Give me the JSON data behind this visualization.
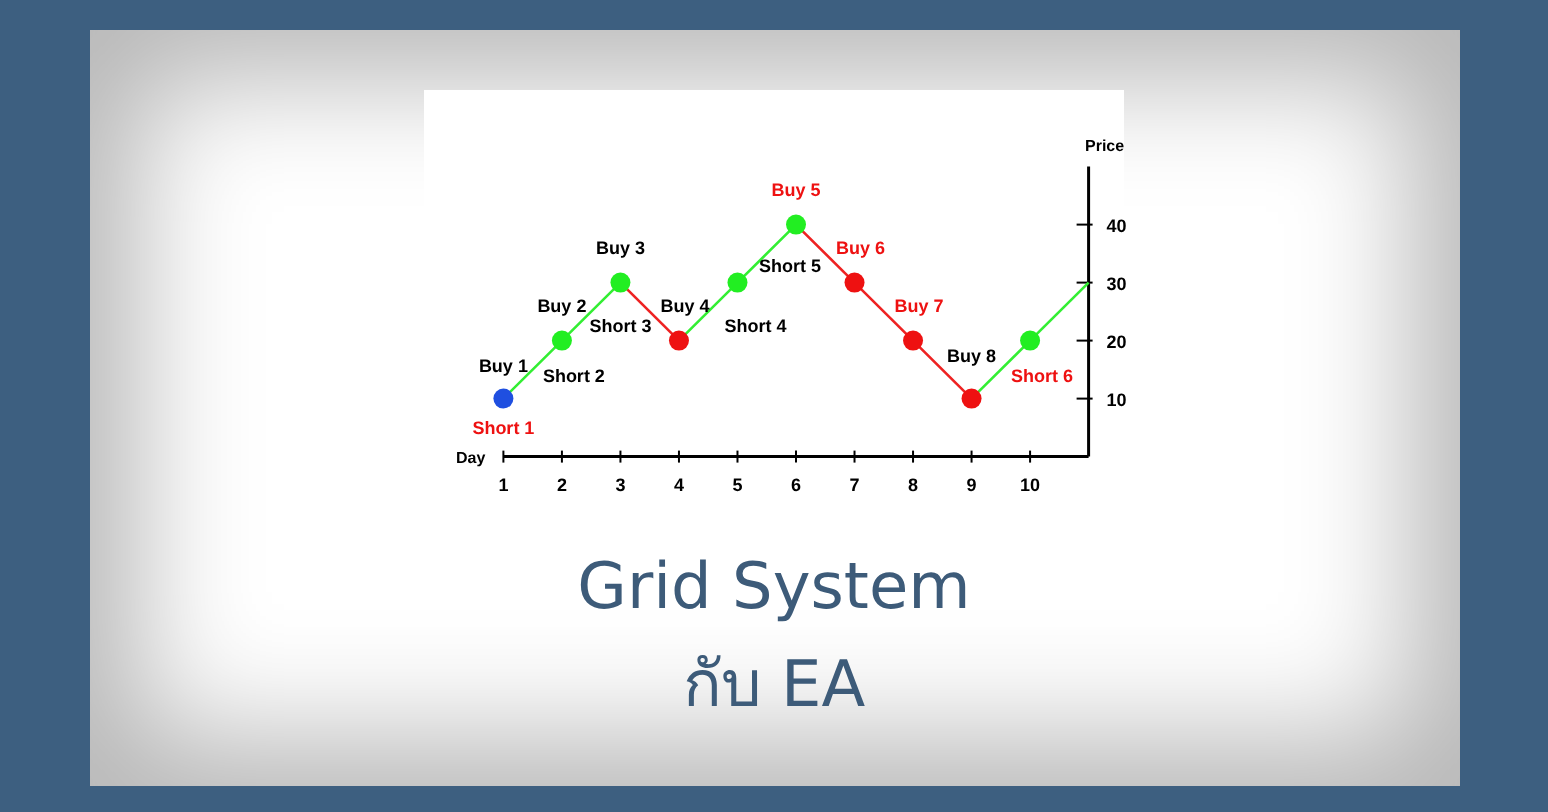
{
  "chart_data": {
    "type": "line",
    "title": "Grid System",
    "subtitle": "กับ EA",
    "xlabel": "Day",
    "ylabel": "Price",
    "xlim": [
      1,
      11
    ],
    "xticks": [
      1,
      2,
      3,
      4,
      5,
      6,
      7,
      8,
      9,
      10
    ],
    "ylim": [
      0,
      50
    ],
    "yticks": [
      10,
      20,
      30,
      40
    ],
    "series": [
      {
        "color": "#33ee33",
        "x": [
          1,
          2,
          3
        ],
        "values": [
          10,
          20,
          30
        ]
      },
      {
        "color": "#ee2222",
        "x": [
          3,
          4
        ],
        "values": [
          30,
          20
        ]
      },
      {
        "color": "#33ee33",
        "x": [
          4,
          5,
          6
        ],
        "values": [
          20,
          30,
          40
        ]
      },
      {
        "color": "#ee2222",
        "x": [
          6,
          7,
          8,
          9
        ],
        "values": [
          40,
          30,
          20,
          10
        ]
      },
      {
        "color": "#33ee33",
        "x": [
          9,
          10,
          11
        ],
        "values": [
          10,
          20,
          30
        ]
      },
      {
        "type": "scatter",
        "x": [
          1,
          2,
          3,
          4,
          5,
          6,
          7,
          8,
          9,
          10
        ],
        "values": [
          10,
          20,
          30,
          20,
          30,
          40,
          30,
          20,
          10,
          20
        ],
        "colors": [
          "#1f4fe0",
          "#22ee22",
          "#22ee22",
          "#ee1111",
          "#22ee22",
          "#22ee22",
          "#ee1111",
          "#ee1111",
          "#ee1111",
          "#22ee22"
        ]
      }
    ],
    "annotations": [
      {
        "text": "Buy 1",
        "x": 1,
        "y": 10
      },
      {
        "text": "Short 1",
        "x": 1,
        "y": 10
      },
      {
        "text": "Buy 2",
        "x": 2,
        "y": 20
      },
      {
        "text": "Short 2",
        "x": 2,
        "y": 20
      },
      {
        "text": "Buy 3",
        "x": 3,
        "y": 30
      },
      {
        "text": "Short 3",
        "x": 3,
        "y": 30
      },
      {
        "text": "Buy 4",
        "x": 4,
        "y": 20
      },
      {
        "text": "Short 4",
        "x": 5,
        "y": 30
      },
      {
        "text": "Short 5",
        "x": 6,
        "y": 40
      },
      {
        "text": "Buy 5",
        "x": 6,
        "y": 40
      },
      {
        "text": "Buy 6",
        "x": 7,
        "y": 30
      },
      {
        "text": "Buy 7",
        "x": 8,
        "y": 20
      },
      {
        "text": "Buy 8",
        "x": 9,
        "y": 10
      },
      {
        "text": "Short 6",
        "x": 10,
        "y": 20
      }
    ]
  }
}
